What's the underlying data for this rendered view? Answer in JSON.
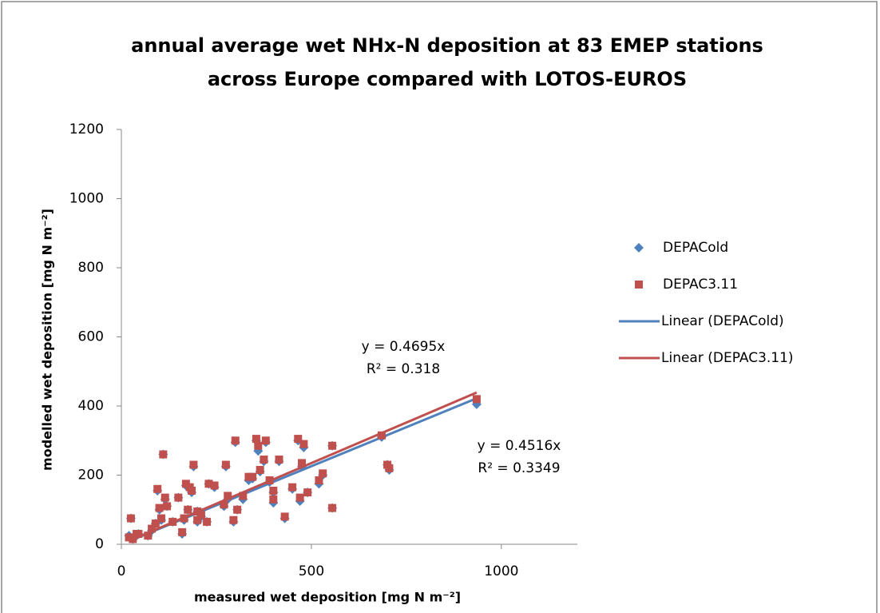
{
  "chart_data": {
    "type": "scatter",
    "title": [
      "annual average wet NHx-N deposition at 83 EMEP stations",
      "across Europe compared with LOTOS-EUROS"
    ],
    "x_label": "measured wet deposition  [mg N m⁻²]",
    "y_label": "modelled wet deposition  [mg N m⁻²]",
    "xlim": [
      0,
      1200
    ],
    "xticks": [
      0,
      500,
      1000
    ],
    "ylim": [
      0,
      1200
    ],
    "yticks": [
      0,
      200,
      400,
      600,
      800,
      1000,
      1200
    ],
    "grid": false,
    "legend": "right",
    "series": [
      {
        "name": "DEPACold",
        "color": "#4f81bd",
        "marker": "diamond",
        "x": [
          20,
          25,
          30,
          40,
          45,
          70,
          80,
          90,
          95,
          100,
          105,
          110,
          115,
          120,
          135,
          150,
          160,
          165,
          170,
          175,
          180,
          185,
          190,
          200,
          200,
          210,
          225,
          230,
          245,
          270,
          275,
          280,
          295,
          300,
          305,
          320,
          335,
          345,
          355,
          360,
          365,
          375,
          380,
          390,
          400,
          400,
          415,
          430,
          450,
          465,
          470,
          475,
          480,
          490,
          520,
          530,
          555,
          555,
          685,
          700,
          705,
          935
        ],
        "values": [
          25,
          75,
          15,
          25,
          30,
          25,
          40,
          60,
          155,
          100,
          70,
          260,
          130,
          110,
          65,
          135,
          30,
          70,
          170,
          100,
          160,
          150,
          225,
          65,
          95,
          80,
          65,
          175,
          165,
          110,
          225,
          130,
          65,
          295,
          100,
          130,
          185,
          190,
          300,
          270,
          210,
          240,
          295,
          180,
          150,
          120,
          240,
          75,
          160,
          300,
          125,
          225,
          280,
          150,
          175,
          200,
          285,
          105,
          310,
          230,
          215,
          405
        ],
        "trendline": {
          "name": "Linear (DEPACold)",
          "slope": 0.4516,
          "equation": "y = 0.4516x",
          "r2": "R² = 0.3349"
        }
      },
      {
        "name": "DEPAC3.11",
        "color": "#c0504d",
        "marker": "square",
        "x": [
          20,
          25,
          30,
          40,
          45,
          70,
          80,
          90,
          95,
          100,
          105,
          110,
          115,
          120,
          135,
          150,
          160,
          165,
          170,
          175,
          180,
          185,
          190,
          200,
          200,
          210,
          225,
          230,
          245,
          270,
          275,
          280,
          295,
          300,
          305,
          320,
          335,
          345,
          355,
          360,
          365,
          375,
          380,
          390,
          400,
          400,
          415,
          430,
          450,
          465,
          470,
          475,
          480,
          490,
          520,
          530,
          555,
          555,
          685,
          700,
          705,
          935
        ],
        "values": [
          20,
          75,
          15,
          30,
          30,
          25,
          45,
          60,
          160,
          105,
          75,
          260,
          135,
          110,
          65,
          135,
          35,
          75,
          175,
          100,
          165,
          155,
          230,
          70,
          95,
          85,
          65,
          175,
          170,
          115,
          230,
          140,
          70,
          300,
          100,
          140,
          195,
          195,
          305,
          285,
          215,
          245,
          300,
          185,
          155,
          130,
          245,
          80,
          165,
          305,
          135,
          235,
          290,
          150,
          185,
          205,
          285,
          105,
          315,
          230,
          220,
          420
        ],
        "trendline": {
          "name": "Linear (DEPAC3.11)",
          "slope": 0.4695,
          "equation": "y = 0.4695x",
          "r2": "R² = 0.318"
        }
      }
    ]
  }
}
